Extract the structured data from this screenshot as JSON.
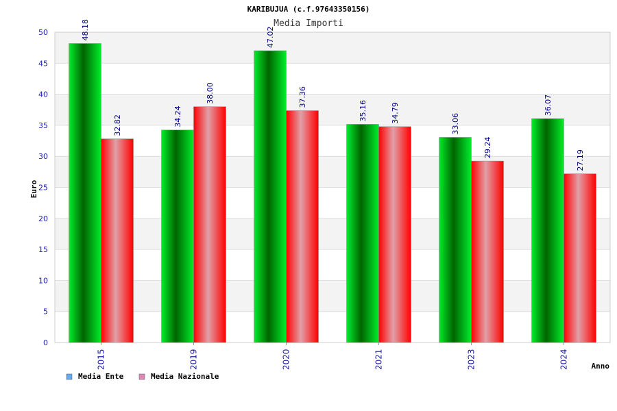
{
  "chart_data": {
    "type": "bar",
    "title": "KARIBUJUA (c.f.97643350156)",
    "subtitle": "Media Importi",
    "xlabel": "Anno",
    "ylabel": "Euro",
    "categories": [
      "2015",
      "2019",
      "2020",
      "2021",
      "2023",
      "2024"
    ],
    "series": [
      {
        "name": "Media Ente",
        "values": [
          48.18,
          34.24,
          47.02,
          35.16,
          33.06,
          36.07
        ],
        "labels": [
          "48.18",
          "34.24",
          "47.02",
          "35.16",
          "33.06",
          "36.07"
        ]
      },
      {
        "name": "Media Nazionale",
        "values": [
          32.82,
          38.0,
          37.36,
          34.79,
          29.24,
          27.19
        ],
        "labels": [
          "32.82",
          "38.00",
          "37.36",
          "34.79",
          "29.24",
          "27.19"
        ]
      }
    ],
    "ylim": [
      0,
      50
    ],
    "yticks": [
      "0",
      "5",
      "10",
      "15",
      "20",
      "25",
      "30",
      "35",
      "40",
      "45",
      "50"
    ],
    "grid": true,
    "legend_position": "bottom-left",
    "colors": {
      "ente_dark": "#006400",
      "ente_light": "#00ee2a",
      "naz_mid": "#e0a0a8",
      "naz_edge": "#ff0000",
      "legend_ente": "#66aaee",
      "legend_naz": "#e088b8",
      "tick_text": "#1a1aaa",
      "label_text": "#000080"
    }
  }
}
